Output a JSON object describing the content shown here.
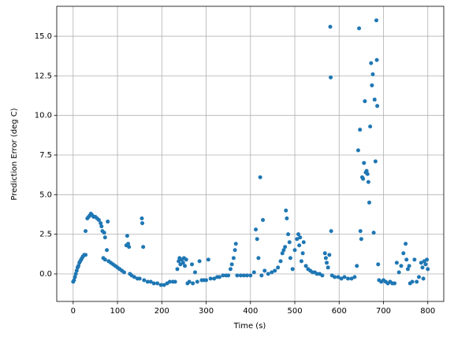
{
  "chart_data": {
    "type": "scatter",
    "xlabel": "Time (s)",
    "ylabel": "Prediction Error (deg C)",
    "color": "#1f77b4",
    "grid": true,
    "xlim": [
      -37,
      836
    ],
    "ylim": [
      -1.74,
      16.89
    ],
    "xticks": [
      0,
      100,
      200,
      300,
      400,
      500,
      600,
      700,
      800
    ],
    "yticks": [
      {
        "value": 0,
        "label": "0.0"
      },
      2.5,
      {
        "value": 5,
        "label": "5.0"
      },
      7.5,
      {
        "value": 10,
        "label": "10.0"
      },
      12.5,
      {
        "value": 15,
        "label": "15.0"
      }
    ],
    "x": [
      0,
      2,
      4,
      6,
      8,
      10,
      12,
      14,
      16,
      18,
      20,
      22,
      25,
      28,
      28,
      32,
      35,
      38,
      40,
      43,
      46,
      50,
      54,
      58,
      62,
      64,
      66,
      70,
      72,
      68,
      72,
      78,
      76,
      80,
      85,
      90,
      95,
      100,
      105,
      110,
      115,
      120,
      122,
      124,
      126,
      128,
      132,
      138,
      145,
      150,
      155,
      156,
      158,
      160,
      168,
      175,
      182,
      190,
      198,
      205,
      212,
      218,
      225,
      230,
      235,
      238,
      240,
      242,
      245,
      248,
      250,
      252,
      255,
      258,
      262,
      268,
      270,
      275,
      280,
      285,
      290,
      295,
      300,
      305,
      310,
      318,
      325,
      330,
      338,
      345,
      350,
      355,
      358,
      362,
      365,
      367,
      370,
      378,
      385,
      392,
      400,
      408,
      412,
      415,
      418,
      422,
      425,
      428,
      432,
      440,
      448,
      455,
      462,
      468,
      472,
      475,
      478,
      480,
      482,
      485,
      488,
      490,
      495,
      500,
      505,
      508,
      510,
      512,
      515,
      518,
      520,
      525,
      530,
      535,
      540,
      545,
      550,
      556,
      562,
      568,
      570,
      572,
      575,
      578,
      580,
      581,
      582,
      584,
      590,
      598,
      605,
      612,
      620,
      628,
      635,
      640,
      643,
      645,
      647,
      648,
      650,
      652,
      654,
      656,
      658,
      660,
      662,
      664,
      666,
      668,
      670,
      672,
      674,
      676,
      678,
      680,
      682,
      684,
      685,
      686,
      688,
      690,
      695,
      700,
      705,
      710,
      715,
      720,
      725,
      730,
      735,
      740,
      745,
      750,
      752,
      755,
      758,
      760,
      765,
      770,
      775,
      780,
      785,
      788,
      790,
      792,
      795,
      798,
      800
    ],
    "values": [
      -0.5,
      -0.4,
      -0.2,
      0,
      0.2,
      0.4,
      0.5,
      0.7,
      0.8,
      0.9,
      1.0,
      1.1,
      1.2,
      1.2,
      2.7,
      3.5,
      3.6,
      3.7,
      3.8,
      3.7,
      3.6,
      3.6,
      3.5,
      3.4,
      3.2,
      3.0,
      2.7,
      2.6,
      2.3,
      1.0,
      0.9,
      3.3,
      1.5,
      0.8,
      0.7,
      0.6,
      0.5,
      0.4,
      0.3,
      0.2,
      0.1,
      1.8,
      2.4,
      1.9,
      1.7,
      0,
      -0.1,
      -0.2,
      -0.3,
      -0.3,
      3.5,
      3.2,
      1.7,
      -0.4,
      -0.5,
      -0.5,
      -0.6,
      -0.6,
      -0.7,
      -0.7,
      -0.6,
      -0.5,
      -0.5,
      -0.5,
      0.3,
      0.8,
      1.0,
      0.6,
      0.9,
      0.7,
      1.0,
      0.5,
      0.9,
      -0.6,
      -0.5,
      0.6,
      -0.6,
      0.1,
      -0.5,
      0.8,
      -0.4,
      -0.4,
      -0.4,
      0.9,
      -0.3,
      -0.3,
      -0.2,
      -0.2,
      -0.1,
      -0.1,
      -0.1,
      0.3,
      0.6,
      1.0,
      1.5,
      1.9,
      -0.1,
      -0.1,
      -0.1,
      -0.1,
      -0.1,
      0.1,
      2.8,
      2.2,
      1.0,
      6.1,
      -0.1,
      3.4,
      0.2,
      0,
      0.1,
      0.2,
      0.4,
      0.8,
      1.3,
      1.5,
      1.7,
      4.0,
      3.5,
      2.5,
      2.0,
      1.0,
      0.3,
      1.5,
      2.2,
      2.5,
      1.8,
      2.3,
      0.8,
      1.3,
      2.0,
      0.5,
      0.3,
      0.2,
      0.1,
      0.1,
      0,
      0,
      -0.1,
      1.3,
      1.0,
      0.7,
      0.4,
      1.2,
      15.6,
      12.4,
      2.7,
      -0.1,
      -0.2,
      -0.2,
      -0.3,
      -0.2,
      -0.3,
      -0.3,
      -0.2,
      0.5,
      7.8,
      15.5,
      9.1,
      2.7,
      2.2,
      6.1,
      6.0,
      7.0,
      10.9,
      6.4,
      6.5,
      6.3,
      5.8,
      4.5,
      9.3,
      13.3,
      11.9,
      12.6,
      2.6,
      11.0,
      7.1,
      16.0,
      13.5,
      10.6,
      0.6,
      -0.4,
      -0.5,
      -0.4,
      -0.5,
      -0.6,
      -0.5,
      -0.6,
      -0.6,
      0.7,
      0.1,
      0.5,
      1.3,
      1.9,
      0.9,
      0.3,
      0.5,
      -0.6,
      -0.5,
      0.9,
      -0.5,
      -0.2,
      0.7,
      0.4,
      -0.3,
      0.8,
      0.6,
      0.9,
      0.3
    ]
  }
}
